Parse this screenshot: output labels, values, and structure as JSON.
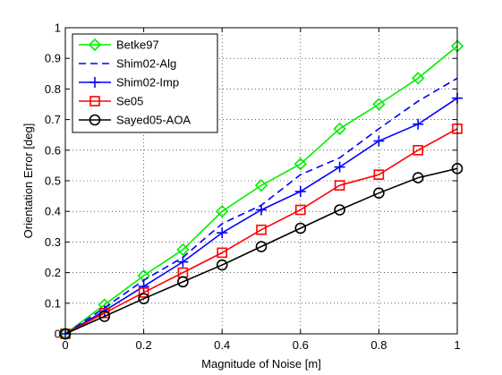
{
  "chart_data": {
    "type": "line",
    "title": "",
    "xlabel": "Magnitude of Noise [m]",
    "ylabel": "Orientation Error [deg]",
    "xlim": [
      0,
      1
    ],
    "ylim": [
      0,
      1
    ],
    "xticks": [
      "0",
      "0.2",
      "0.4",
      "0.6",
      "0.8",
      "1"
    ],
    "yticks": [
      "0",
      "0.1",
      "0.2",
      "0.3",
      "0.4",
      "0.5",
      "0.6",
      "0.7",
      "0.8",
      "0.9",
      "1"
    ],
    "grid": true,
    "legend_position": "top-left",
    "x": [
      0,
      0.1,
      0.2,
      0.3,
      0.4,
      0.5,
      0.6,
      0.7,
      0.8,
      0.9,
      1.0
    ],
    "series": [
      {
        "name": "Betke97",
        "color": "#00ee00",
        "marker": "diamond",
        "dash": "solid",
        "values": [
          0,
          0.095,
          0.19,
          0.275,
          0.4,
          0.485,
          0.555,
          0.67,
          0.75,
          0.835,
          0.94
        ]
      },
      {
        "name": "Shim02-Alg",
        "color": "#0000ff",
        "marker": "none",
        "dash": "dashed",
        "values": [
          0,
          0.085,
          0.175,
          0.25,
          0.36,
          0.42,
          0.52,
          0.575,
          0.67,
          0.76,
          0.835
        ]
      },
      {
        "name": "Shim02-Imp",
        "color": "#0000ff",
        "marker": "plus",
        "dash": "solid",
        "values": [
          0,
          0.075,
          0.155,
          0.235,
          0.33,
          0.405,
          0.465,
          0.545,
          0.63,
          0.685,
          0.77
        ]
      },
      {
        "name": "Se05",
        "color": "#ff0000",
        "marker": "square",
        "dash": "solid",
        "values": [
          0,
          0.068,
          0.135,
          0.2,
          0.265,
          0.34,
          0.405,
          0.485,
          0.52,
          0.6,
          0.67
        ]
      },
      {
        "name": "Sayed05-AOA",
        "color": "#000000",
        "marker": "circle",
        "dash": "solid",
        "values": [
          0,
          0.057,
          0.115,
          0.17,
          0.225,
          0.285,
          0.345,
          0.405,
          0.46,
          0.51,
          0.54
        ]
      }
    ]
  }
}
